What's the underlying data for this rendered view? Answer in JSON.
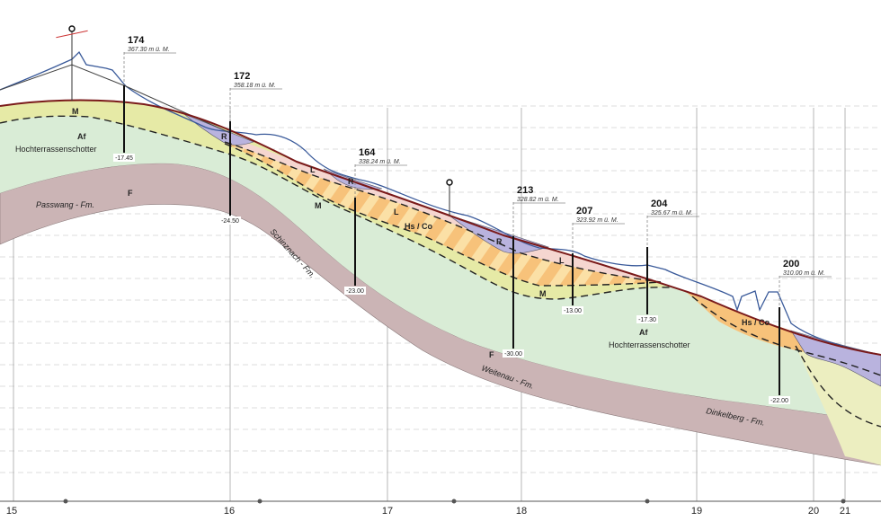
{
  "colors": {
    "af": "#d9ecd6",
    "m": "#e6eaa6",
    "f": "#cbb4b5",
    "hs_co": "#f7c27a",
    "hs_co_stripe": "#fbe2a0",
    "l": "#f5d6d0",
    "r": "#b9b3de",
    "terrain": "#7a1a1a",
    "original_terrain": "#3a5a9a"
  },
  "boreholes": [
    {
      "name": "174",
      "elevation": "367.30 m ü. M.",
      "depth": "-17.45"
    },
    {
      "name": "172",
      "elevation": "358.18 m ü. M.",
      "depth": "-24.50"
    },
    {
      "name": "164",
      "elevation": "338.24 m ü. M.",
      "depth": "-23.00"
    },
    {
      "name": "213",
      "elevation": "328.82 m ü. M.",
      "depth": "-30.00"
    },
    {
      "name": "207",
      "elevation": "323.92 m ü. M.",
      "depth": "-13.00"
    },
    {
      "name": "204",
      "elevation": "325.67 m ü. M.",
      "depth": "-17.30"
    },
    {
      "name": "200",
      "elevation": "310.00 m ü. M.",
      "depth": "-22.00"
    }
  ],
  "layer_labels": {
    "m1": "M",
    "af1": "Af",
    "hts1": "Hochterrassenschotter",
    "passwang": "Passwang - Fm.",
    "f1": "F",
    "r1": "R",
    "l1": "L",
    "r2": "R",
    "l2": "L",
    "m2": "M",
    "hsco1": "Hs / Co",
    "r3": "R",
    "l3": "L",
    "m3": "M",
    "schinznach": "Schinznach - Fm.",
    "weitenau": "Weitenau - Fm.",
    "f2": "F",
    "af2": "Af",
    "hts2": "Hochterrassenschotter",
    "hsco2": "Hs / Co",
    "dinkelberg": "Dinkelberg - Fm."
  },
  "axis": {
    "ticks": [
      "15",
      "16",
      "17",
      "18",
      "19",
      "20",
      "21"
    ]
  }
}
